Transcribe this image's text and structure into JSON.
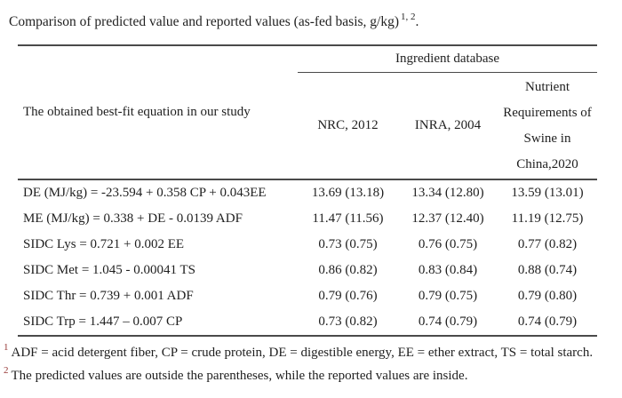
{
  "page": {
    "title": "Comparison of predicted value and reported values (as-fed basis, g/kg)",
    "title_superscript": "1, 2",
    "title_period": "."
  },
  "table": {
    "equation_column_header": "The obtained best-fit equation in our study",
    "group_header": "Ingredient database",
    "columns": [
      "NRC, 2012",
      "INRA, 2004",
      "Nutrient Requirements of Swine in China,2020"
    ],
    "rows": [
      {
        "equation": "DE (MJ/kg) = -23.594 + 0.358 CP + 0.043EE",
        "values": [
          "13.69 (13.18)",
          "13.34 (12.80)",
          "13.59 (13.01)"
        ]
      },
      {
        "equation": "ME (MJ/kg) = 0.338 + DE - 0.0139 ADF",
        "values": [
          "11.47 (11.56)",
          "12.37 (12.40)",
          "11.19 (12.75)"
        ]
      },
      {
        "equation": "SIDC Lys = 0.721 + 0.002 EE",
        "values": [
          "0.73 (0.75)",
          "0.76 (0.75)",
          "0.77 (0.82)"
        ]
      },
      {
        "equation": "SIDC Met = 1.045 - 0.00041 TS",
        "values": [
          "0.86 (0.82)",
          "0.83 (0.84)",
          "0.88 (0.74)"
        ]
      },
      {
        "equation": "SIDC Thr = 0.739 + 0.001 ADF",
        "values": [
          "0.79 (0.76)",
          "0.79 (0.75)",
          "0.79 (0.80)"
        ]
      },
      {
        "equation": "SIDC Trp = 1.447 – 0.007 CP",
        "values": [
          "0.73 (0.82)",
          "0.74 (0.79)",
          "0.74 (0.79)"
        ]
      }
    ]
  },
  "footnotes": [
    {
      "marker": "1",
      "text": "ADF = acid detergent fiber, CP = crude protein, DE = digestible energy, EE = ether extract, TS = total starch."
    },
    {
      "marker": "2",
      "text": "The predicted values are outside the parentheses, while the reported values are inside."
    }
  ],
  "colors": {
    "footnote_marker": "#963735",
    "rule": "#4a4a4a",
    "text": "#1f1f1f",
    "background": "#ffffff"
  }
}
